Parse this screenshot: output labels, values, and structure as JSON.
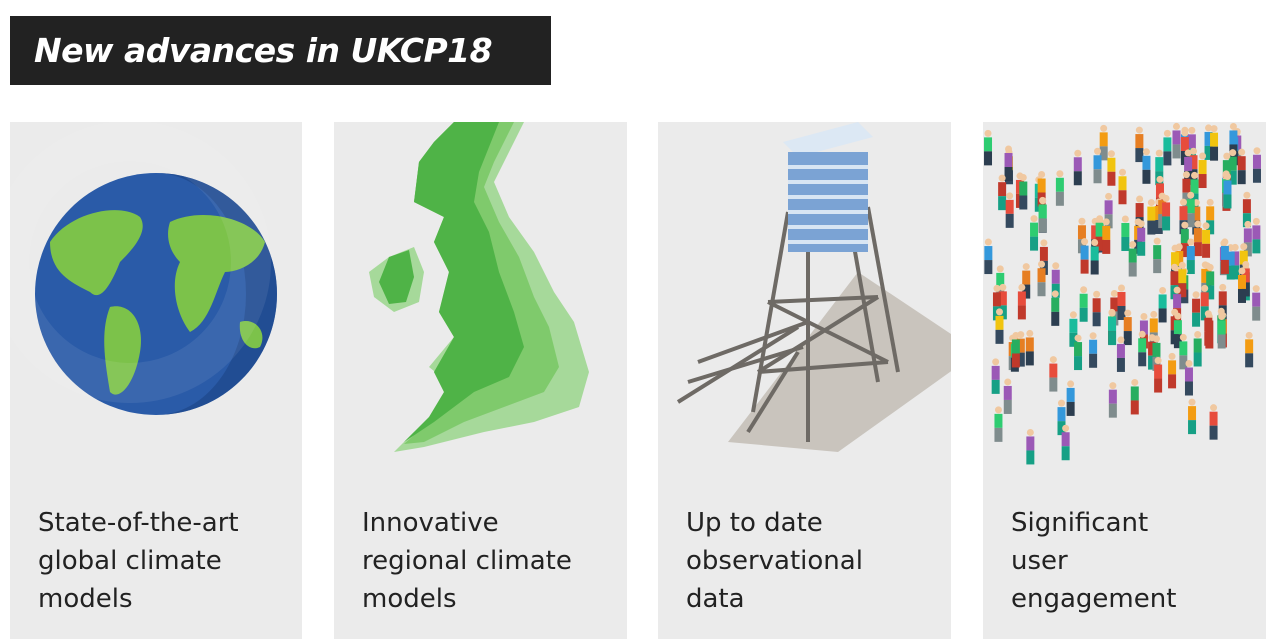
{
  "header": {
    "title": "New advances in UKCP18"
  },
  "cards": [
    {
      "caption_lines": [
        "State-of-the-art",
        "global climate",
        "models"
      ]
    },
    {
      "caption_lines": [
        "Innovative",
        "regional climate",
        "models"
      ]
    },
    {
      "caption_lines": [
        "Up to date",
        "observational",
        "data"
      ]
    },
    {
      "caption_lines": [
        "Significant",
        "user",
        "engagement"
      ]
    }
  ]
}
